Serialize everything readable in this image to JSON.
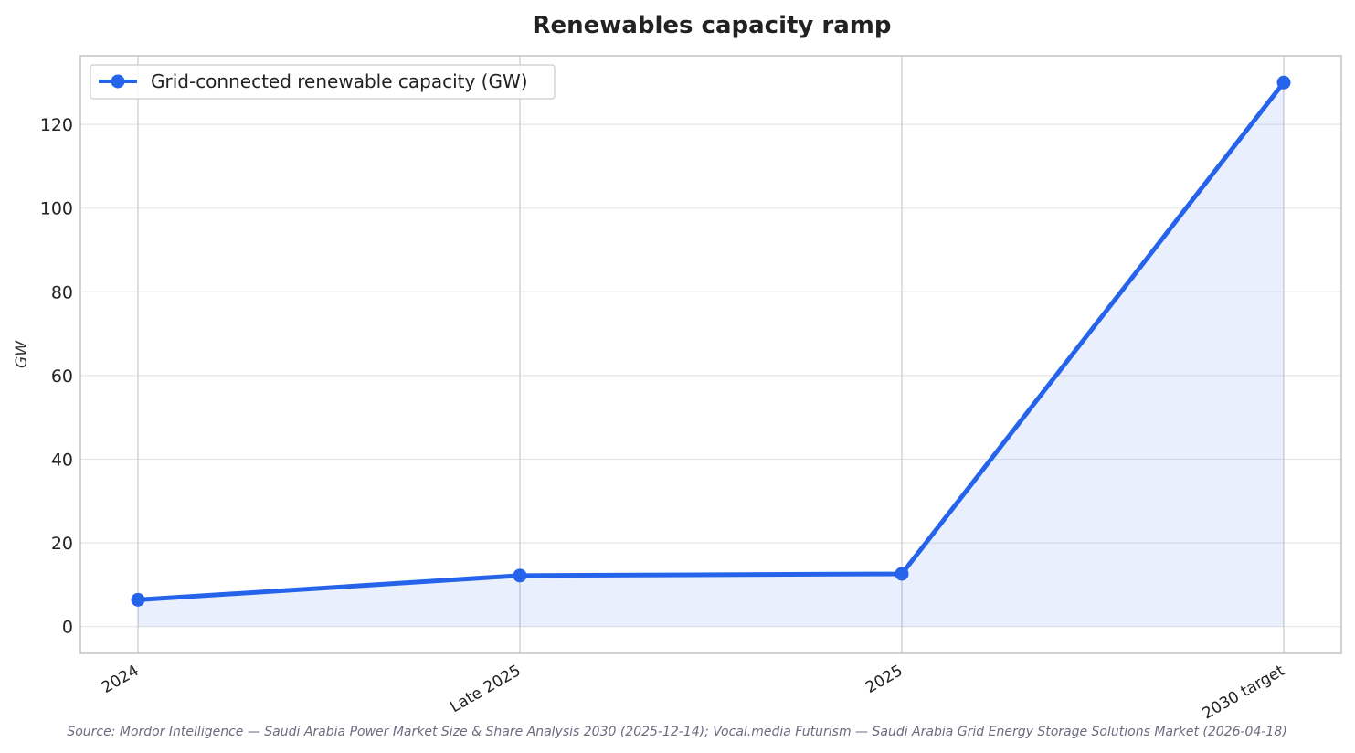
{
  "chart_data": {
    "type": "line",
    "title": "Renewables capacity ramp",
    "ylabel": "GW",
    "xlabel": "",
    "categories": [
      "2024",
      "Late 2025",
      "2025",
      "2030 target"
    ],
    "series": [
      {
        "name": "Grid-connected renewable capacity (GW)",
        "values": [
          6.4,
          12.2,
          12.6,
          130
        ],
        "color": "#2563eb",
        "fill": true
      }
    ],
    "ylim": [
      -6.4,
      136.4
    ],
    "yticks": [
      0,
      20,
      40,
      60,
      80,
      100,
      120
    ],
    "grid": true,
    "legend_position": "top-left"
  },
  "source": "Source: Mordor Intelligence — Saudi Arabia Power Market Size & Share Analysis 2030 (2025-12-14); Vocal.media Futurism — Saudi Arabia Grid Energy Storage Solutions Market (2026-04-18)",
  "colors": {
    "line": "#2563eb",
    "fill": "#2563eb",
    "grid": "#e6e6e6",
    "vgrid": "#c8c8d0",
    "frame": "#c4c4c4"
  }
}
